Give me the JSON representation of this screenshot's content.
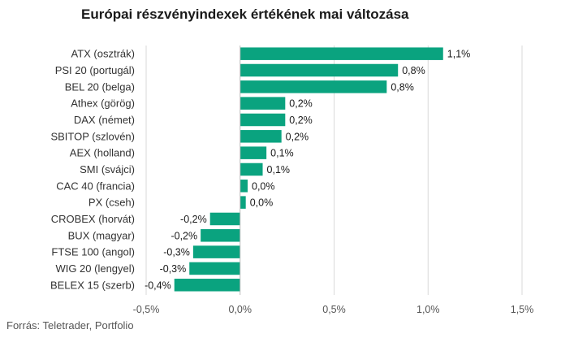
{
  "title": "Európai részvényindexek értékének mai változása",
  "source": "Forrás: Teletrader, Portfolio",
  "colors": {
    "bar": "#0aa37f",
    "grid": "#d9d9d9",
    "text": "#333333"
  },
  "chart_data": {
    "type": "bar",
    "orientation": "horizontal",
    "title": "Európai részvényindexek értékének mai változása",
    "categories": [
      "ATX (osztrák)",
      "PSI 20 (portugál)",
      "BEL 20 (belga)",
      "Athex (görög)",
      "DAX (német)",
      "SBITOP (szlovén)",
      "AEX (holland)",
      "SMI (svájci)",
      "CAC 40 (francia)",
      "PX (cseh)",
      "CROBEX (horvát)",
      "BUX (magyar)",
      "FTSE 100 (angol)",
      "WIG 20 (lengyel)",
      "BELEX 15 (szerb)"
    ],
    "values": [
      1.08,
      0.84,
      0.78,
      0.24,
      0.24,
      0.22,
      0.14,
      0.12,
      0.04,
      0.03,
      -0.16,
      -0.21,
      -0.25,
      -0.27,
      -0.35
    ],
    "data_labels": [
      "1,1%",
      "0,8%",
      "0,8%",
      "0,2%",
      "0,2%",
      "0,2%",
      "0,1%",
      "0,1%",
      "0,0%",
      "0,0%",
      "-0,2%",
      "-0,2%",
      "-0,3%",
      "-0,3%",
      "-0,4%"
    ],
    "xlim": [
      -0.5,
      1.5
    ],
    "xticks": [
      -0.5,
      0.0,
      0.5,
      1.0,
      1.5
    ],
    "xtick_labels": [
      "-0,5%",
      "0,0%",
      "0,5%",
      "1,0%",
      "1,5%"
    ],
    "grid": true,
    "xlabel": "",
    "ylabel": ""
  }
}
